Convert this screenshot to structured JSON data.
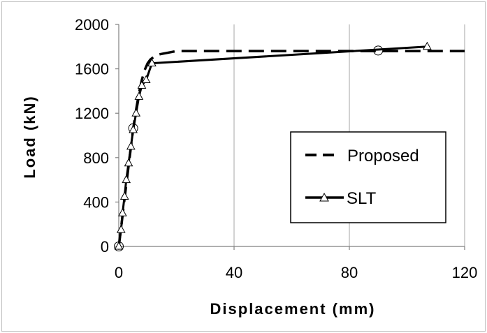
{
  "chart_data": {
    "type": "line",
    "title": "",
    "xlabel": "Displacement (mm)",
    "ylabel": "Load (kN)",
    "xlim": [
      0,
      120
    ],
    "ylim": [
      0,
      2000
    ],
    "xticks": [
      0,
      40,
      80,
      120
    ],
    "yticks": [
      0,
      400,
      800,
      1200,
      1600,
      2000
    ],
    "grid": "vertical",
    "legend_position": "center-right",
    "series": [
      {
        "name": "Proposed",
        "style": "dashed",
        "color": "#000000",
        "x": [
          0,
          1,
          2,
          3,
          4,
          5,
          6,
          7,
          8,
          9,
          10,
          11,
          12,
          13,
          14,
          20,
          40,
          60,
          80,
          100,
          120
        ],
        "y": [
          0,
          210,
          430,
          640,
          850,
          1060,
          1230,
          1380,
          1500,
          1590,
          1650,
          1685,
          1705,
          1720,
          1730,
          1760,
          1760,
          1760,
          1760,
          1760,
          1760
        ],
        "markers": [
          {
            "x": 0,
            "y": 0
          },
          {
            "x": 5,
            "y": 1065
          },
          {
            "x": 90,
            "y": 1765
          }
        ],
        "marker_shape": "circle"
      },
      {
        "name": "SLT",
        "style": "solid",
        "color": "#000000",
        "marker_shape": "triangle",
        "x": [
          0,
          0.8,
          1.3,
          2,
          2.6,
          3.4,
          4.2,
          5,
          6,
          7,
          8,
          9.5,
          11.5,
          107
        ],
        "y": [
          0,
          150,
          300,
          450,
          600,
          750,
          900,
          1050,
          1200,
          1350,
          1450,
          1500,
          1650,
          1800
        ]
      }
    ]
  }
}
